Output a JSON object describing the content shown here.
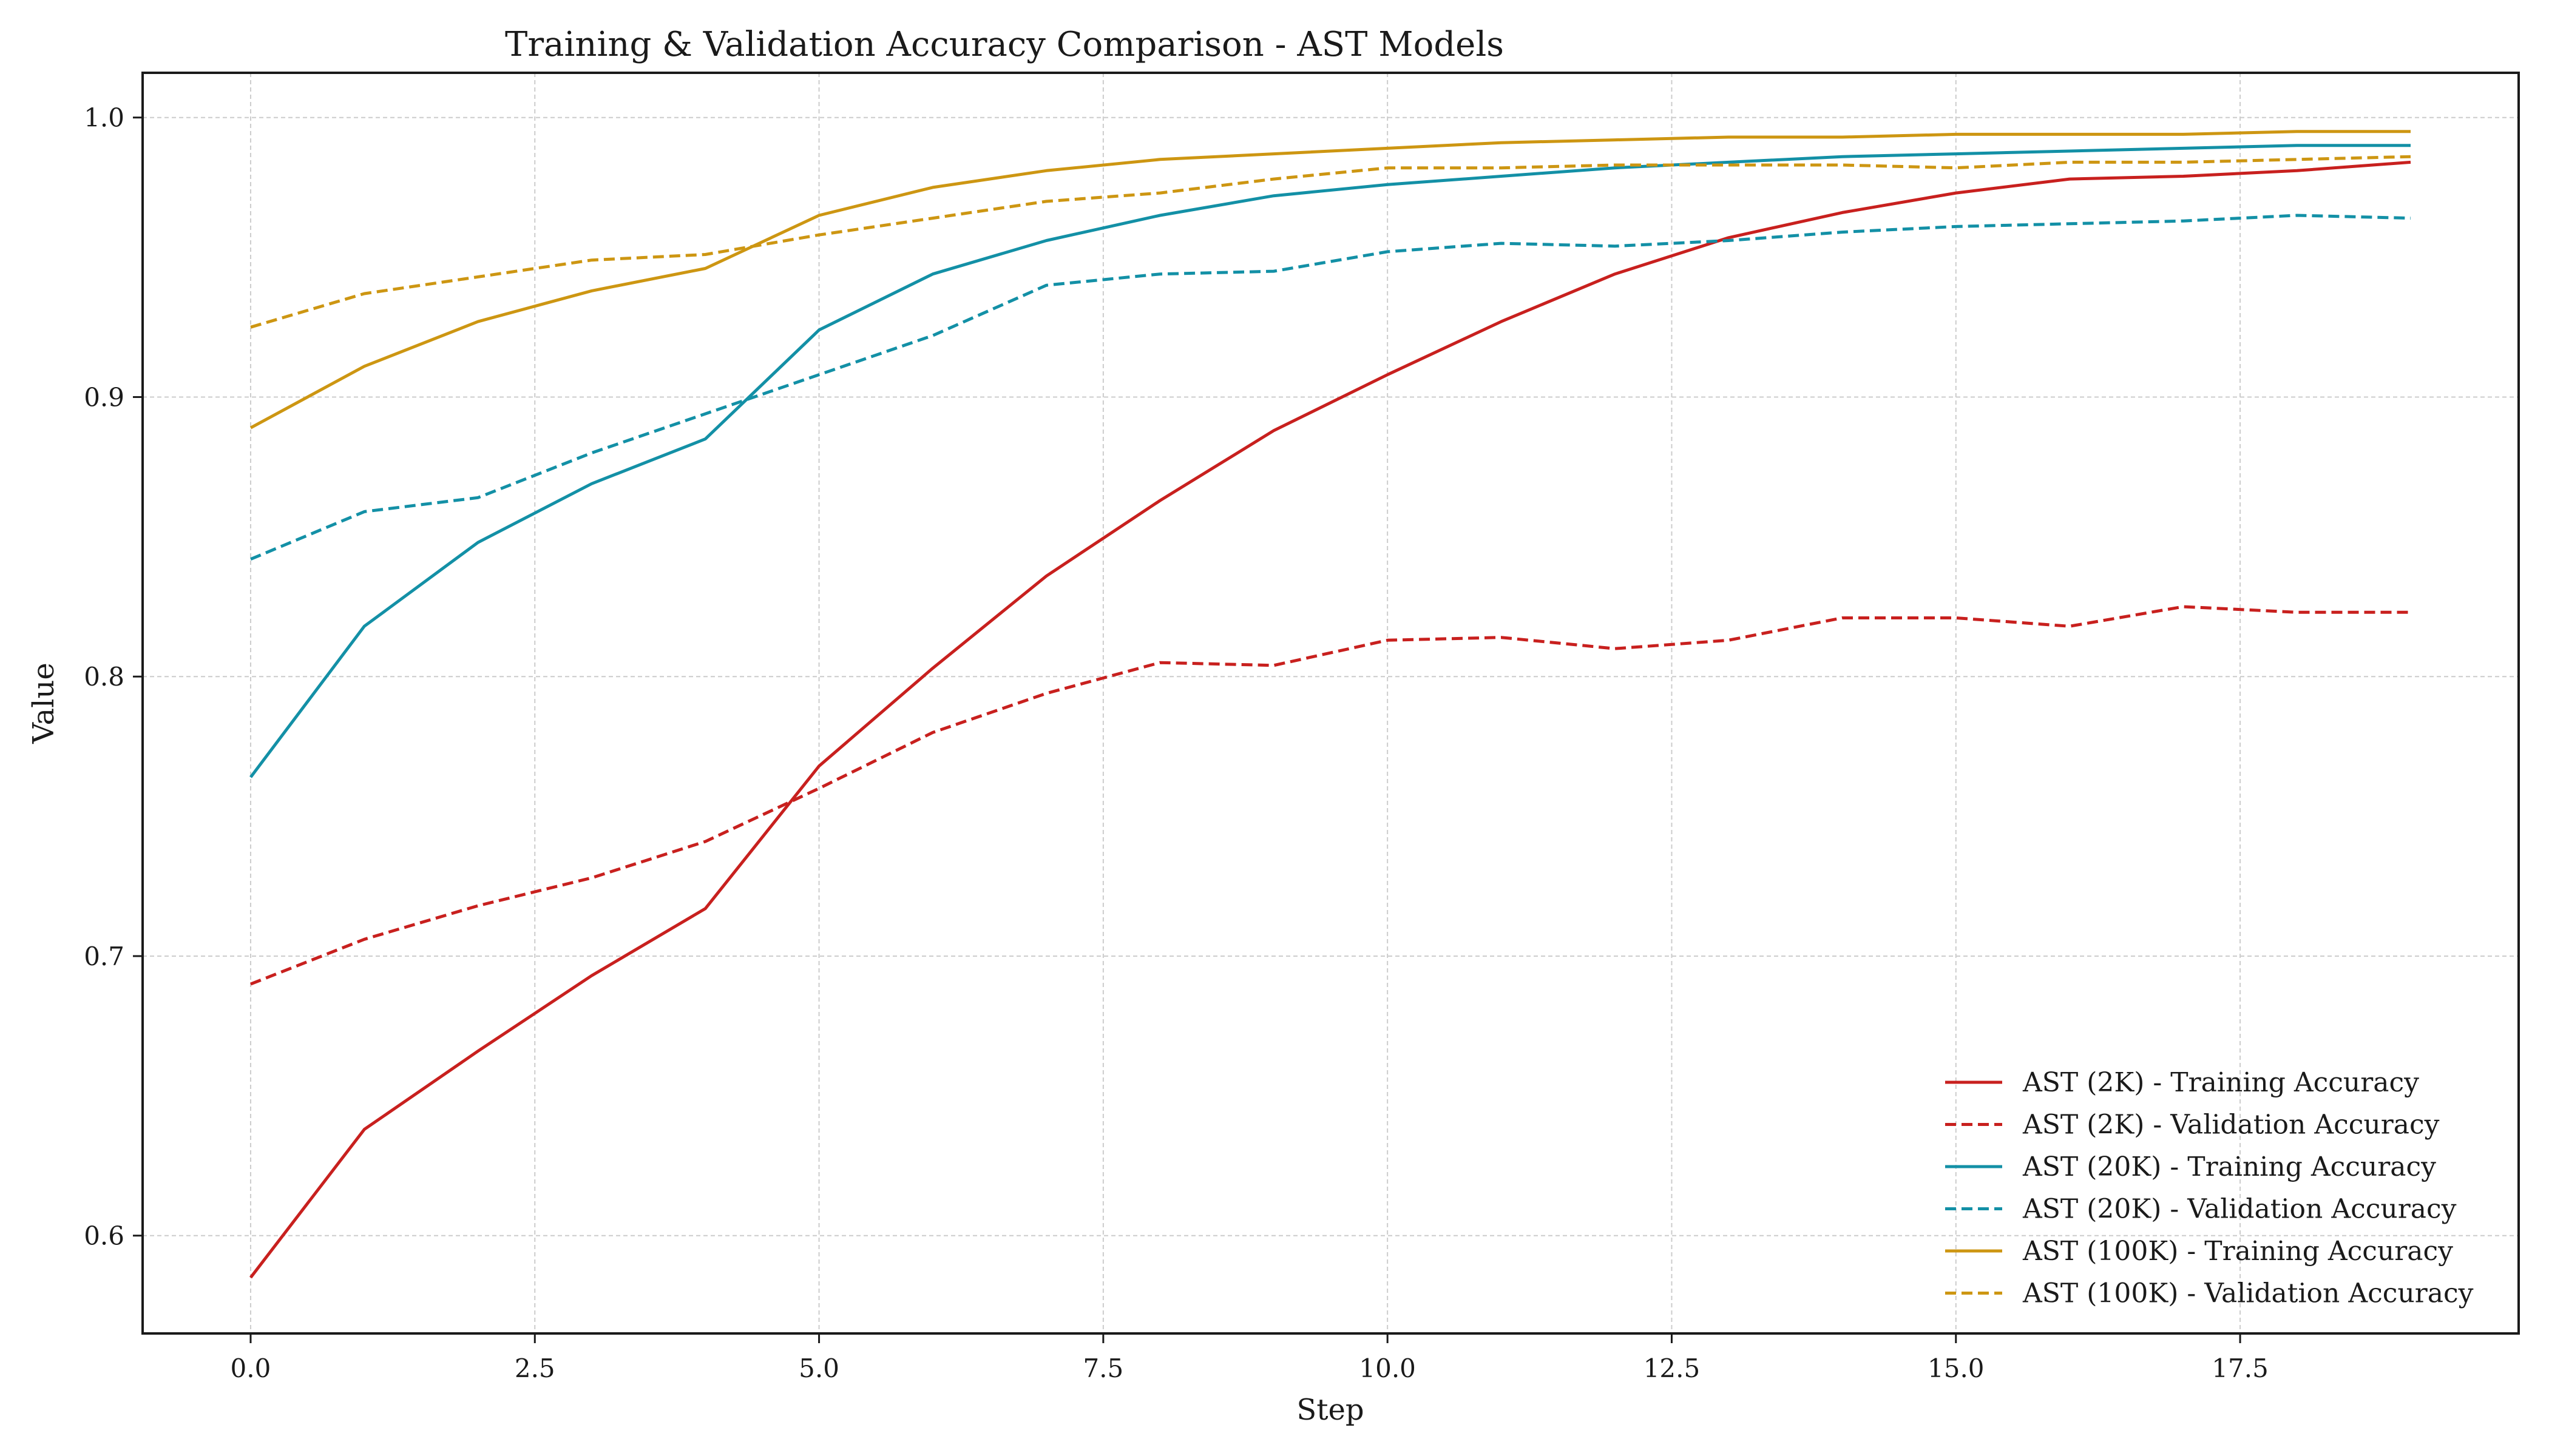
{
  "chart_data": {
    "type": "line",
    "title": "Training & Validation Accuracy Comparison - AST Models",
    "xlabel": "Step",
    "ylabel": "Value",
    "xlim": [
      -0.95,
      19.95
    ],
    "ylim": [
      0.565,
      1.016
    ],
    "xticks": [
      0.0,
      2.5,
      5.0,
      7.5,
      10.0,
      12.5,
      15.0,
      17.5
    ],
    "xtick_labels": [
      "0.0",
      "2.5",
      "5.0",
      "7.5",
      "10.0",
      "12.5",
      "15.0",
      "17.5"
    ],
    "yticks": [
      0.6,
      0.7,
      0.8,
      0.9,
      1.0
    ],
    "ytick_labels": [
      "0.6",
      "0.7",
      "0.8",
      "0.9",
      "1.0"
    ],
    "grid": true,
    "legend_position": "lower-right",
    "x": [
      0,
      1,
      2,
      3,
      4,
      5,
      6,
      7,
      8,
      9,
      10,
      11,
      12,
      13,
      14,
      15,
      16,
      17,
      18,
      19
    ],
    "series": [
      {
        "name": "AST (2K) - Training Accuracy",
        "color": "#c8201e",
        "style": "solid",
        "values": [
          0.585,
          0.638,
          0.666,
          0.693,
          0.717,
          0.768,
          0.803,
          0.836,
          0.863,
          0.888,
          0.908,
          0.927,
          0.944,
          0.957,
          0.966,
          0.973,
          0.978,
          0.979,
          0.981,
          0.984
        ]
      },
      {
        "name": "AST (2K) - Validation Accuracy",
        "color": "#c8201e",
        "style": "dashed",
        "values": [
          0.69,
          0.706,
          0.718,
          0.728,
          0.741,
          0.76,
          0.78,
          0.794,
          0.805,
          0.804,
          0.813,
          0.814,
          0.81,
          0.813,
          0.821,
          0.821,
          0.818,
          0.825,
          0.823,
          0.823
        ]
      },
      {
        "name": "AST (20K) - Training Accuracy",
        "color": "#1390a6",
        "style": "solid",
        "values": [
          0.764,
          0.818,
          0.848,
          0.869,
          0.885,
          0.924,
          0.944,
          0.956,
          0.965,
          0.972,
          0.976,
          0.979,
          0.982,
          0.984,
          0.986,
          0.987,
          0.988,
          0.989,
          0.99,
          0.99
        ]
      },
      {
        "name": "AST (20K) - Validation Accuracy",
        "color": "#1390a6",
        "style": "dashed",
        "values": [
          0.842,
          0.859,
          0.864,
          0.88,
          0.894,
          0.908,
          0.922,
          0.94,
          0.944,
          0.945,
          0.952,
          0.955,
          0.954,
          0.956,
          0.959,
          0.961,
          0.962,
          0.963,
          0.965,
          0.964
        ]
      },
      {
        "name": "AST (100K) - Training Accuracy",
        "color": "#cd9612",
        "style": "solid",
        "values": [
          0.889,
          0.911,
          0.927,
          0.938,
          0.946,
          0.965,
          0.975,
          0.981,
          0.985,
          0.987,
          0.989,
          0.991,
          0.992,
          0.993,
          0.993,
          0.994,
          0.994,
          0.994,
          0.995,
          0.995
        ]
      },
      {
        "name": "AST (100K) - Validation Accuracy",
        "color": "#cd9612",
        "style": "dashed",
        "values": [
          0.925,
          0.937,
          0.943,
          0.949,
          0.951,
          0.958,
          0.964,
          0.97,
          0.973,
          0.978,
          0.982,
          0.982,
          0.983,
          0.983,
          0.983,
          0.982,
          0.984,
          0.984,
          0.985,
          0.986
        ]
      }
    ]
  }
}
